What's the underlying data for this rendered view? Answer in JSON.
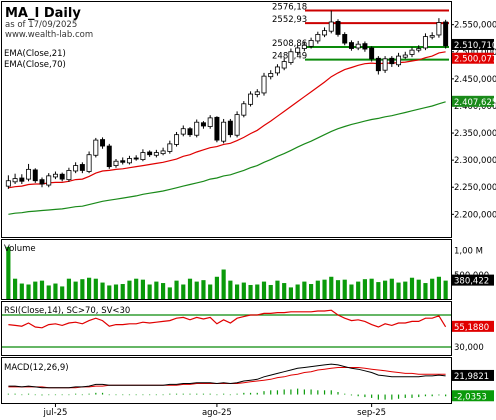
{
  "header": {
    "title": "MA_I Daily",
    "date": "as of 17/09/2025",
    "site": "www.wealth-lab.com"
  },
  "colors": {
    "up": "#ffffff",
    "down": "#000000",
    "ema21": "#e00000",
    "ema70": "#1a8a1a",
    "volume": "#0a9a0a",
    "resistance": "#cc0000",
    "support": "#0a8a0a",
    "rsi_line": "#e00000",
    "rsi_bands": "#0a8a0a",
    "macd_line": "#000000",
    "macd_signal": "#e00000",
    "macd_hist": "#0a9a0a",
    "value_tag_bg": "#0a8a0a",
    "value_tag_text": "#ffffff"
  },
  "chart_data": [
    {
      "id": "price",
      "type": "candlestick",
      "legend": [
        "EMA(Close,21)",
        "EMA(Close,70)"
      ],
      "ylim": [
        2160000,
        2590000
      ],
      "yticks": [
        "2.550,000",
        "2.500,000",
        "2.450,000",
        "2.400,000",
        "2.350,000",
        "2.300,000",
        "2.250,000",
        "2.200,000"
      ],
      "ytick_values": [
        2550000,
        2500000,
        2450000,
        2400000,
        2350000,
        2300000,
        2250000,
        2200000
      ],
      "last_labels": [
        "2.510,710",
        "2.500,077",
        "2.407,625"
      ],
      "last_values": [
        2510710,
        2500077,
        2407625
      ],
      "level_labels": [
        "2576,18",
        "2552,93",
        "2508,86",
        "2485,49"
      ],
      "level_values": [
        2576180,
        2552930,
        2508860,
        2485490
      ],
      "resistance_levels": [
        2576180,
        2552930
      ],
      "support_levels": [
        2508860,
        2485490
      ],
      "close": [
        2262000,
        2266000,
        2261000,
        2283000,
        2262000,
        2256000,
        2271000,
        2274000,
        2265000,
        2281000,
        2290000,
        2281000,
        2310000,
        2337000,
        2326000,
        2288000,
        2298000,
        2296000,
        2303000,
        2302000,
        2314000,
        2310000,
        2314000,
        2317000,
        2330000,
        2347000,
        2358000,
        2347000,
        2370000,
        2363000,
        2378000,
        2337000,
        2370000,
        2347000,
        2384000,
        2404000,
        2422000,
        2426000,
        2455000,
        2460000,
        2472000,
        2482000,
        2500000,
        2507000,
        2512000,
        2521000,
        2532000,
        2539000,
        2555000,
        2532000,
        2516000,
        2506000,
        2514000,
        2505000,
        2487000,
        2465000,
        2487000,
        2478000,
        2492000,
        2494000,
        2503000,
        2506000,
        2528000,
        2530000,
        2554000,
        2511000
      ],
      "open": [
        2252000,
        2260000,
        2267000,
        2265000,
        2282000,
        2264000,
        2254000,
        2269000,
        2274000,
        2264000,
        2280000,
        2292000,
        2279000,
        2309000,
        2338000,
        2326000,
        2290000,
        2299000,
        2295000,
        2304000,
        2301000,
        2315000,
        2309000,
        2312000,
        2316000,
        2329000,
        2348000,
        2358000,
        2346000,
        2369000,
        2362000,
        2379000,
        2335000,
        2372000,
        2346000,
        2383000,
        2403000,
        2421000,
        2424000,
        2454000,
        2461000,
        2470000,
        2480000,
        2499000,
        2506000,
        2510000,
        2520000,
        2531000,
        2538000,
        2556000,
        2532000,
        2517000,
        2507000,
        2515000,
        2507000,
        2488000,
        2466000,
        2488000,
        2476000,
        2490000,
        2495000,
        2503000,
        2507000,
        2527000,
        2531000,
        2555000
      ],
      "high": [
        2272000,
        2275000,
        2274000,
        2293000,
        2285000,
        2268000,
        2276000,
        2279000,
        2277000,
        2286000,
        2296000,
        2296000,
        2316000,
        2341000,
        2342000,
        2330000,
        2302000,
        2305000,
        2308000,
        2309000,
        2320000,
        2318000,
        2319000,
        2323000,
        2336000,
        2352000,
        2364000,
        2361000,
        2375000,
        2372000,
        2383000,
        2381000,
        2376000,
        2376000,
        2390000,
        2409000,
        2427000,
        2431000,
        2461000,
        2466000,
        2477000,
        2488000,
        2506000,
        2512000,
        2518000,
        2526000,
        2537000,
        2545000,
        2576000,
        2560000,
        2536000,
        2521000,
        2520000,
        2519000,
        2510000,
        2492000,
        2492000,
        2492000,
        2498000,
        2500000,
        2508000,
        2512000,
        2534000,
        2536000,
        2562000,
        2559000
      ],
      "low": [
        2247000,
        2256000,
        2256000,
        2261000,
        2258000,
        2250000,
        2250000,
        2265000,
        2261000,
        2260000,
        2276000,
        2276000,
        2276000,
        2305000,
        2321000,
        2284000,
        2286000,
        2292000,
        2292000,
        2299000,
        2298000,
        2306000,
        2305000,
        2309000,
        2312000,
        2325000,
        2344000,
        2343000,
        2342000,
        2358000,
        2358000,
        2333000,
        2331000,
        2342000,
        2342000,
        2379000,
        2399000,
        2416000,
        2419000,
        2449000,
        2456000,
        2466000,
        2476000,
        2494000,
        2501000,
        2506000,
        2515000,
        2527000,
        2534000,
        2528000,
        2512000,
        2502000,
        2503000,
        2500000,
        2482000,
        2458000,
        2461000,
        2472000,
        2472000,
        2487000,
        2490000,
        2499000,
        2503000,
        2523000,
        2526000,
        2506000
      ],
      "ema21": [
        2249000,
        2251000,
        2252000,
        2255000,
        2256000,
        2256000,
        2258000,
        2259000,
        2259000,
        2261000,
        2264000,
        2265000,
        2270000,
        2276000,
        2280000,
        2281000,
        2283000,
        2284000,
        2286000,
        2288000,
        2290000,
        2292000,
        2294000,
        2296000,
        2299000,
        2302000,
        2307000,
        2310000,
        2315000,
        2319000,
        2323000,
        2325000,
        2329000,
        2331000,
        2336000,
        2342000,
        2349000,
        2355000,
        2364000,
        2372000,
        2381000,
        2390000,
        2399000,
        2408000,
        2417000,
        2426000,
        2435000,
        2444000,
        2454000,
        2461000,
        2467000,
        2471000,
        2475000,
        2478000,
        2479000,
        2478000,
        2479000,
        2479000,
        2480000,
        2481000,
        2483000,
        2485000,
        2489000,
        2492000,
        2498000,
        2500000
      ],
      "ema70": [
        2200000,
        2202000,
        2203000,
        2205000,
        2206000,
        2207000,
        2208000,
        2209000,
        2210000,
        2212000,
        2214000,
        2215000,
        2218000,
        2221000,
        2224000,
        2226000,
        2228000,
        2230000,
        2232000,
        2234000,
        2237000,
        2239000,
        2241000,
        2243000,
        2246000,
        2249000,
        2252000,
        2255000,
        2258000,
        2261000,
        2265000,
        2267000,
        2271000,
        2273000,
        2277000,
        2281000,
        2286000,
        2290000,
        2296000,
        2301000,
        2307000,
        2312000,
        2318000,
        2324000,
        2330000,
        2335000,
        2341000,
        2347000,
        2353000,
        2358000,
        2362000,
        2366000,
        2369000,
        2372000,
        2375000,
        2377000,
        2380000,
        2382000,
        2385000,
        2388000,
        2391000,
        2394000,
        2397000,
        2400000,
        2404000,
        2407625
      ]
    },
    {
      "id": "volume",
      "type": "bar",
      "label": "Volume",
      "ylim": [
        0,
        1200000
      ],
      "yticks": [
        "1,00 M",
        "500,000"
      ],
      "ytick_values": [
        1000000,
        500000
      ],
      "last_label": "380,422",
      "last_value": 380422,
      "values": [
        1080000,
        420000,
        320000,
        300000,
        360000,
        380000,
        280000,
        320000,
        260000,
        420000,
        360000,
        410000,
        440000,
        420000,
        340000,
        280000,
        300000,
        310000,
        380000,
        420000,
        400000,
        300000,
        360000,
        330000,
        240000,
        380000,
        300000,
        420000,
        360000,
        390000,
        300000,
        460000,
        610000,
        380000,
        300000,
        340000,
        290000,
        300000,
        360000,
        290000,
        380000,
        330000,
        240000,
        300000,
        360000,
        310000,
        380000,
        400000,
        460000,
        390000,
        400000,
        300000,
        360000,
        410000,
        420000,
        350000,
        380000,
        420000,
        340000,
        360000,
        440000,
        400000,
        330000,
        420000,
        460000,
        380422
      ]
    },
    {
      "id": "rsi",
      "type": "line",
      "label": "RSI(Close,14), SC>70, SV<30",
      "ylim": [
        20,
        85
      ],
      "yticks": [
        "30,000"
      ],
      "ytick_values": [
        30
      ],
      "bands": [
        70,
        30
      ],
      "last_label": "55,1880",
      "last_value": 55.188,
      "values": [
        58,
        57,
        56,
        60,
        55,
        54,
        58,
        59,
        57,
        60,
        61,
        59,
        63,
        66,
        63,
        56,
        58,
        58,
        59,
        59,
        61,
        60,
        61,
        62,
        63,
        66,
        67,
        64,
        67,
        65,
        67,
        59,
        64,
        60,
        66,
        68,
        70,
        70,
        72,
        72,
        73,
        73,
        74,
        74,
        74,
        74,
        75,
        75,
        76,
        70,
        66,
        63,
        64,
        62,
        58,
        55,
        59,
        57,
        60,
        60,
        62,
        62,
        66,
        66,
        69,
        55.188
      ]
    },
    {
      "id": "macd",
      "type": "line",
      "label": "MACD(12,26,9)",
      "ylim": [
        -10,
        42
      ],
      "last_labels": [
        "21,9821",
        "-2,0353"
      ],
      "last_values": [
        21.9821,
        -2.0353
      ],
      "macd": [
        10,
        10,
        9,
        10,
        9,
        8,
        8,
        8,
        8,
        8,
        9,
        9,
        10,
        12,
        12,
        11,
        11,
        11,
        11,
        11,
        11,
        11,
        11,
        11,
        12,
        12,
        13,
        13,
        14,
        14,
        14,
        13,
        14,
        13,
        14,
        16,
        17,
        18,
        21,
        23,
        25,
        27,
        29,
        31,
        32,
        33,
        34,
        35,
        36,
        35,
        33,
        31,
        30,
        28,
        26,
        23,
        22,
        21,
        21,
        21,
        21,
        21,
        22,
        22,
        23,
        21.98
      ],
      "signal": [
        9,
        9,
        9,
        9,
        9,
        9,
        8,
        8,
        8,
        8,
        8,
        9,
        9,
        10,
        10,
        11,
        11,
        11,
        11,
        11,
        11,
        11,
        11,
        11,
        11,
        11,
        12,
        12,
        13,
        13,
        13,
        13,
        13,
        13,
        13,
        14,
        15,
        16,
        17,
        18,
        20,
        21,
        23,
        24,
        26,
        27,
        29,
        30,
        31,
        32,
        32,
        32,
        32,
        31,
        30,
        29,
        28,
        27,
        26,
        25,
        25,
        24,
        24,
        24,
        24,
        24
      ],
      "hist": [
        1,
        1,
        0,
        1,
        0,
        -1,
        0,
        0,
        0,
        0,
        1,
        0,
        1,
        2,
        2,
        0,
        0,
        0,
        0,
        0,
        0,
        0,
        0,
        0,
        1,
        1,
        1,
        1,
        1,
        1,
        1,
        0,
        1,
        0,
        1,
        2,
        2,
        2,
        4,
        5,
        5,
        6,
        6,
        7,
        6,
        6,
        5,
        5,
        5,
        3,
        1,
        -1,
        -2,
        -3,
        -4,
        -6,
        -6,
        -6,
        -5,
        -4,
        -4,
        -3,
        -2,
        -2,
        -1,
        -2.0353
      ]
    }
  ],
  "xaxis": {
    "labels": [
      "jul-25",
      "ago-25",
      "sep-25"
    ],
    "bar_index": [
      7,
      31,
      54
    ]
  }
}
